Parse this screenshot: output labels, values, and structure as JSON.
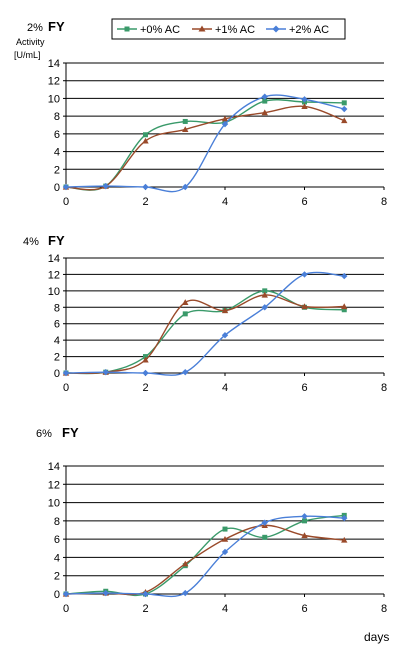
{
  "legend": {
    "entries": [
      {
        "label": "+0% AC",
        "color": "#3a9a6a",
        "marker": "square"
      },
      {
        "label": "+1% AC",
        "color": "#9a4a2a",
        "marker": "triangle"
      },
      {
        "label": "+2% AC",
        "color": "#4a7fd8",
        "marker": "diamond"
      }
    ]
  },
  "ylabel_lines": [
    "Activity",
    "[U/mL]"
  ],
  "xlabel": "days",
  "chart_data": [
    {
      "type": "line",
      "title_prefix": "2%",
      "title_emph": "FY",
      "ylim": [
        0,
        14
      ],
      "yticks": [
        0,
        2,
        4,
        6,
        8,
        10,
        12,
        14
      ],
      "xlim": [
        0,
        8
      ],
      "xticks": [
        0,
        2,
        4,
        6,
        8
      ],
      "grid": true,
      "series": [
        {
          "name": "+0% AC",
          "x": [
            0,
            1,
            2,
            3,
            4,
            5,
            6,
            7
          ],
          "y": [
            0,
            0.1,
            5.9,
            7.4,
            7.3,
            9.7,
            9.6,
            9.5
          ]
        },
        {
          "name": "+1% AC",
          "x": [
            0,
            1,
            2,
            3,
            4,
            5,
            6,
            7
          ],
          "y": [
            0,
            0.1,
            5.2,
            6.5,
            7.7,
            8.4,
            9.1,
            7.5
          ]
        },
        {
          "name": "+2% AC",
          "x": [
            0,
            1,
            2,
            3,
            4,
            5,
            6,
            7
          ],
          "y": [
            0,
            0.1,
            0,
            0,
            7.1,
            10.2,
            9.9,
            8.8
          ]
        }
      ]
    },
    {
      "type": "line",
      "title_prefix": "4%",
      "title_emph": "FY",
      "ylim": [
        0,
        14
      ],
      "yticks": [
        0,
        2,
        4,
        6,
        8,
        10,
        12,
        14
      ],
      "xlim": [
        0,
        8
      ],
      "xticks": [
        0,
        2,
        4,
        6,
        8
      ],
      "grid": true,
      "series": [
        {
          "name": "+0% AC",
          "x": [
            0,
            1,
            2,
            3,
            4,
            5,
            6,
            7
          ],
          "y": [
            0,
            0.1,
            2.0,
            7.2,
            7.6,
            10.0,
            8.0,
            7.7
          ]
        },
        {
          "name": "+1% AC",
          "x": [
            0,
            1,
            2,
            3,
            4,
            5,
            6,
            7
          ],
          "y": [
            0,
            0.1,
            1.6,
            8.6,
            7.6,
            9.5,
            8.1,
            8.1
          ]
        },
        {
          "name": "+2% AC",
          "x": [
            0,
            1,
            2,
            3,
            4,
            5,
            6,
            7
          ],
          "y": [
            0,
            0.1,
            0,
            0.1,
            4.6,
            8.0,
            12.0,
            11.8
          ]
        }
      ]
    },
    {
      "type": "line",
      "title_prefix": "6%",
      "title_emph": "FY",
      "ylim": [
        0,
        14
      ],
      "yticks": [
        0,
        2,
        4,
        6,
        8,
        10,
        12,
        14
      ],
      "xlim": [
        0,
        8
      ],
      "xticks": [
        0,
        2,
        4,
        6,
        8
      ],
      "grid": true,
      "series": [
        {
          "name": "+0% AC",
          "x": [
            0,
            1,
            2,
            3,
            4,
            5,
            6,
            7
          ],
          "y": [
            0,
            0.3,
            0,
            3.1,
            7.1,
            6.2,
            8.0,
            8.6
          ]
        },
        {
          "name": "+1% AC",
          "x": [
            0,
            1,
            2,
            3,
            4,
            5,
            6,
            7
          ],
          "y": [
            0,
            0.1,
            0.2,
            3.3,
            6.0,
            7.5,
            6.4,
            5.9
          ]
        },
        {
          "name": "+2% AC",
          "x": [
            0,
            1,
            2,
            3,
            4,
            5,
            6,
            7
          ],
          "y": [
            0,
            0.1,
            0,
            0.1,
            4.6,
            7.8,
            8.5,
            8.3
          ]
        }
      ]
    }
  ]
}
